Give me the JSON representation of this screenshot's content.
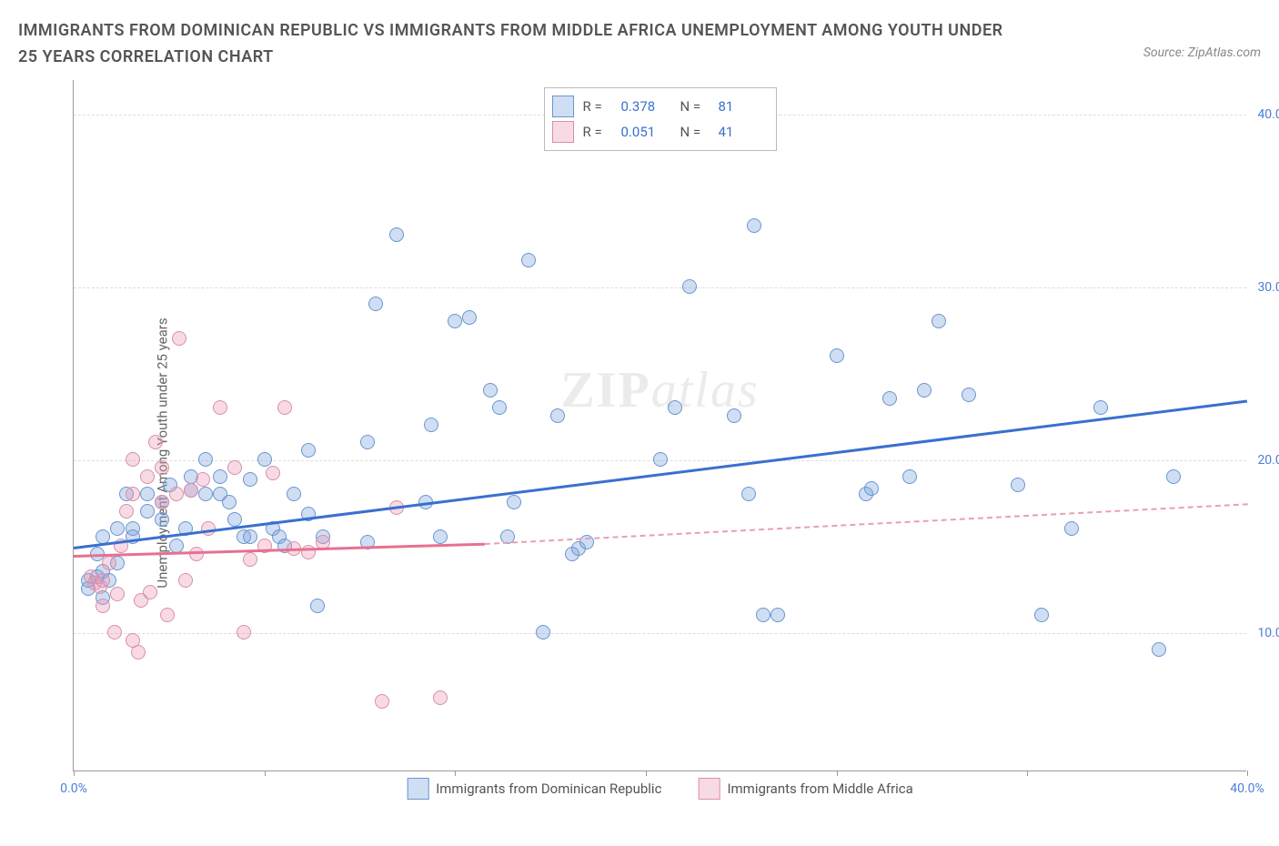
{
  "title": "IMMIGRANTS FROM DOMINICAN REPUBLIC VS IMMIGRANTS FROM MIDDLE AFRICA UNEMPLOYMENT AMONG YOUTH UNDER 25 YEARS CORRELATION CHART",
  "source": "Source: ZipAtlas.com",
  "ylabel": "Unemployment Among Youth under 25 years",
  "watermark": "ZIPatlas",
  "chart": {
    "type": "scatter",
    "xlim": [
      0,
      40
    ],
    "ylim": [
      2,
      42
    ],
    "xtick_positions": [
      0,
      6.5,
      13,
      19.5,
      26,
      32.5,
      40
    ],
    "xtick_labels": {
      "0": "0.0%",
      "40": "40.0%"
    },
    "yticks": [
      10,
      20,
      30,
      40
    ],
    "ytick_labels": [
      "10.0%",
      "20.0%",
      "30.0%",
      "40.0%"
    ],
    "grid_color": "#dddddd",
    "background_color": "#ffffff",
    "series": [
      {
        "name": "Immigrants from Dominican Republic",
        "color_fill": "rgba(120,160,220,0.35)",
        "color_stroke": "#6a95d0",
        "marker_size": 16,
        "stats": {
          "R": "0.378",
          "N": "81"
        },
        "trend": {
          "x1": 0,
          "y1": 15,
          "x2": 40,
          "y2": 23.5,
          "color": "#3a6fd0",
          "width": 3,
          "style": "solid"
        },
        "points": [
          [
            0.5,
            13
          ],
          [
            0.5,
            12.5
          ],
          [
            0.8,
            13.2
          ],
          [
            0.8,
            14.5
          ],
          [
            1,
            12
          ],
          [
            1,
            13.5
          ],
          [
            1,
            15.5
          ],
          [
            1.2,
            13
          ],
          [
            1.5,
            16
          ],
          [
            1.5,
            14
          ],
          [
            1.8,
            18
          ],
          [
            2,
            16
          ],
          [
            2,
            15.5
          ],
          [
            2.5,
            18
          ],
          [
            2.5,
            17
          ],
          [
            3,
            17.5
          ],
          [
            3,
            16.5
          ],
          [
            3.3,
            18.5
          ],
          [
            3.5,
            15
          ],
          [
            3.8,
            16
          ],
          [
            4,
            19
          ],
          [
            4,
            18.2
          ],
          [
            4.5,
            20
          ],
          [
            4.5,
            18
          ],
          [
            5,
            18
          ],
          [
            5,
            19
          ],
          [
            5.3,
            17.5
          ],
          [
            5.5,
            16.5
          ],
          [
            5.8,
            15.5
          ],
          [
            6,
            15.5
          ],
          [
            6,
            18.8
          ],
          [
            6.5,
            20
          ],
          [
            6.8,
            16
          ],
          [
            7,
            15.5
          ],
          [
            7.2,
            15
          ],
          [
            7.5,
            18
          ],
          [
            8,
            20.5
          ],
          [
            8,
            16.8
          ],
          [
            8.3,
            11.5
          ],
          [
            8.5,
            15.5
          ],
          [
            10,
            21
          ],
          [
            10.3,
            29
          ],
          [
            10,
            15.2
          ],
          [
            11,
            33
          ],
          [
            12,
            17.5
          ],
          [
            12.2,
            22
          ],
          [
            12.5,
            15.5
          ],
          [
            13,
            28
          ],
          [
            13.5,
            28.2
          ],
          [
            14.2,
            24
          ],
          [
            14.5,
            23
          ],
          [
            14.8,
            15.5
          ],
          [
            15,
            17.5
          ],
          [
            15.5,
            31.5
          ],
          [
            16,
            10
          ],
          [
            16.5,
            22.5
          ],
          [
            17,
            14.5
          ],
          [
            17.2,
            14.8
          ],
          [
            17.5,
            15.2
          ],
          [
            20,
            20
          ],
          [
            20.5,
            23
          ],
          [
            21,
            30
          ],
          [
            22.5,
            22.5
          ],
          [
            23,
            18
          ],
          [
            23.5,
            11
          ],
          [
            24,
            11
          ],
          [
            23.2,
            33.5
          ],
          [
            26,
            26
          ],
          [
            27,
            18
          ],
          [
            27.2,
            18.3
          ],
          [
            27.8,
            23.5
          ],
          [
            28.5,
            19
          ],
          [
            29,
            24
          ],
          [
            29.5,
            28
          ],
          [
            30.5,
            23.7
          ],
          [
            32.2,
            18.5
          ],
          [
            33,
            11
          ],
          [
            34,
            16
          ],
          [
            35,
            23
          ],
          [
            37,
            9
          ],
          [
            37.5,
            19
          ]
        ]
      },
      {
        "name": "Immigrants from Middle Africa",
        "color_fill": "rgba(235,150,180,0.35)",
        "color_stroke": "#d890a8",
        "marker_size": 16,
        "stats": {
          "R": "0.051",
          "N": "41"
        },
        "trend_solid": {
          "x1": 0,
          "y1": 14.5,
          "x2": 14,
          "y2": 15.2,
          "color": "#e87090",
          "width": 3,
          "style": "solid"
        },
        "trend_dash": {
          "x1": 14,
          "y1": 15.2,
          "x2": 40,
          "y2": 17.5,
          "color": "#e8a0b0",
          "width": 2,
          "style": "dashed"
        },
        "points": [
          [
            0.6,
            13.2
          ],
          [
            0.7,
            12.8
          ],
          [
            0.9,
            12.6
          ],
          [
            1,
            11.5
          ],
          [
            1,
            13
          ],
          [
            1.2,
            14
          ],
          [
            1.4,
            10
          ],
          [
            1.5,
            12.2
          ],
          [
            1.6,
            15
          ],
          [
            1.8,
            17
          ],
          [
            2,
            20
          ],
          [
            2,
            18
          ],
          [
            2,
            9.5
          ],
          [
            2.2,
            8.8
          ],
          [
            2.3,
            11.8
          ],
          [
            2.5,
            19
          ],
          [
            2.6,
            12.3
          ],
          [
            2.8,
            21
          ],
          [
            3,
            19.5
          ],
          [
            3,
            17.5
          ],
          [
            3.2,
            11
          ],
          [
            3.5,
            18
          ],
          [
            3.6,
            27
          ],
          [
            3.8,
            13
          ],
          [
            4,
            18.2
          ],
          [
            4.2,
            14.5
          ],
          [
            4.4,
            18.8
          ],
          [
            4.6,
            16
          ],
          [
            5,
            23
          ],
          [
            5.5,
            19.5
          ],
          [
            5.8,
            10
          ],
          [
            6,
            14.2
          ],
          [
            6.5,
            15
          ],
          [
            6.8,
            19.2
          ],
          [
            7.2,
            23
          ],
          [
            7.5,
            14.8
          ],
          [
            8,
            14.6
          ],
          [
            8.5,
            15.2
          ],
          [
            10.5,
            6
          ],
          [
            11,
            17.2
          ],
          [
            12.5,
            6.2
          ]
        ]
      }
    ],
    "stats_box": [
      {
        "series": 0,
        "R_label": "R =",
        "R": "0.378",
        "N_label": "N =",
        "N": "81"
      },
      {
        "series": 1,
        "R_label": "R =",
        "R": "0.051",
        "N_label": "N =",
        "N": "41"
      }
    ]
  }
}
